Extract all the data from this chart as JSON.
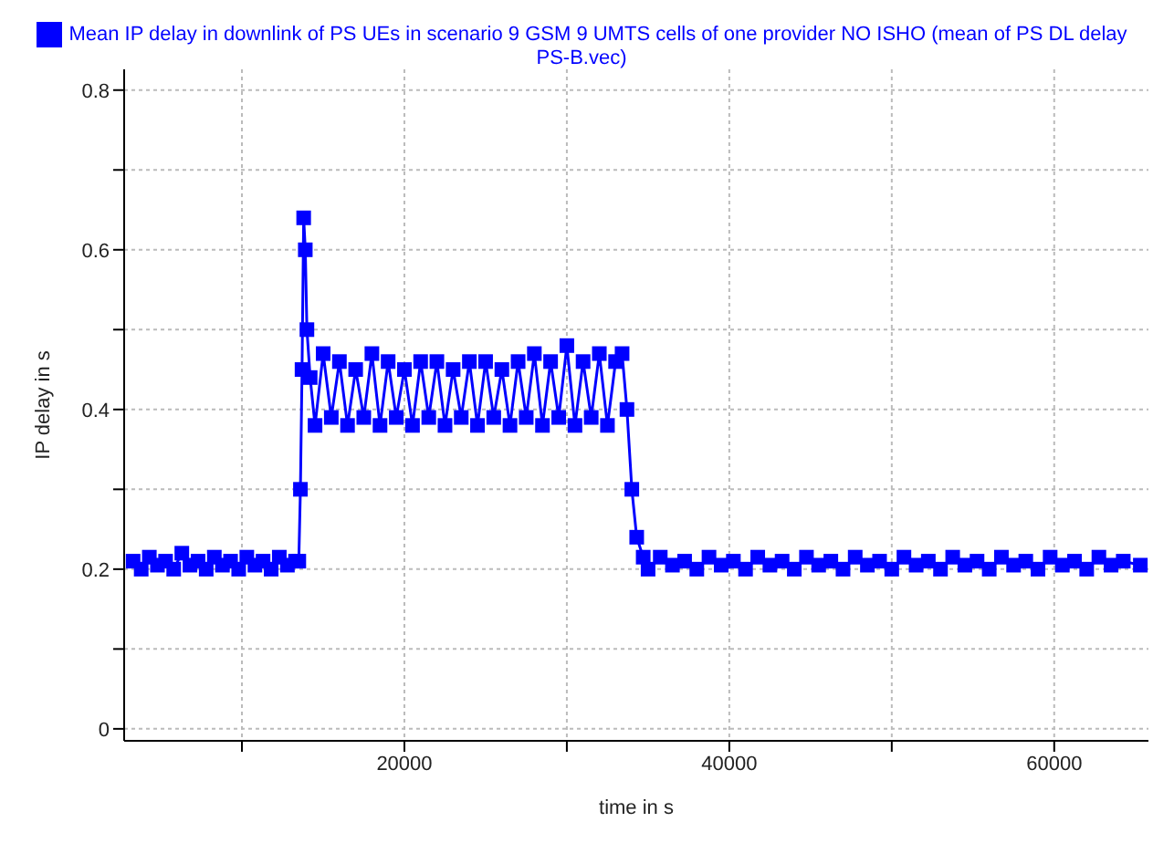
{
  "chart_data": {
    "type": "line",
    "xlabel": "time in s",
    "ylabel": "IP delay in s",
    "xlim": [
      2750,
      65800
    ],
    "ylim": [
      -0.015,
      0.826
    ],
    "xticks": [
      {
        "value": 10000,
        "label": null
      },
      20000,
      {
        "value": 30000,
        "label": null
      },
      40000,
      {
        "value": 50000,
        "label": null
      },
      60000
    ],
    "yticks": [
      0,
      {
        "value": 0.1,
        "label": null
      },
      0.2,
      {
        "value": 0.3,
        "label": null
      },
      0.4,
      {
        "value": 0.5,
        "label": null
      },
      0.6,
      {
        "value": 0.7,
        "label": null
      },
      0.8
    ],
    "grid": true,
    "legend": "top",
    "marker": "square",
    "line_style": "solid",
    "series": [
      {
        "name": "Mean IP delay in downlink of PS UEs in scenario 9 GSM 9 UMTS cells of one provider NO ISHO (mean of PS DL delay PS-B.vec)",
        "color": "#0000ff",
        "x": [
          3300,
          3800,
          4300,
          4800,
          5300,
          5800,
          6300,
          6800,
          7300,
          7800,
          8300,
          8800,
          9300,
          9800,
          10300,
          10800,
          11300,
          11800,
          12300,
          12800,
          13300,
          13500,
          13600,
          13700,
          13800,
          13900,
          14000,
          14200,
          14500,
          15000,
          15500,
          16000,
          16500,
          17000,
          17500,
          18000,
          18500,
          19000,
          19500,
          20000,
          20500,
          21000,
          21500,
          22000,
          22500,
          23000,
          23500,
          24000,
          24500,
          25000,
          25500,
          26000,
          26500,
          27000,
          27500,
          28000,
          28500,
          29000,
          29500,
          30000,
          30500,
          31000,
          31500,
          32000,
          32500,
          33000,
          33400,
          33700,
          34000,
          34300,
          34700,
          35000,
          35750,
          36500,
          37250,
          38000,
          38750,
          39500,
          40250,
          41000,
          41750,
          42500,
          43250,
          44000,
          44750,
          45500,
          46250,
          47000,
          47750,
          48500,
          49250,
          50000,
          50750,
          51500,
          52250,
          53000,
          53750,
          54500,
          55250,
          56000,
          56750,
          57500,
          58250,
          59000,
          59750,
          60500,
          61250,
          62000,
          62750,
          63500,
          64250,
          65300
        ],
        "values": [
          0.21,
          0.2,
          0.215,
          0.205,
          0.21,
          0.2,
          0.22,
          0.205,
          0.21,
          0.2,
          0.215,
          0.205,
          0.21,
          0.2,
          0.215,
          0.205,
          0.21,
          0.2,
          0.215,
          0.205,
          0.21,
          0.21,
          0.3,
          0.45,
          0.64,
          0.6,
          0.5,
          0.44,
          0.38,
          0.47,
          0.39,
          0.46,
          0.38,
          0.45,
          0.39,
          0.47,
          0.38,
          0.46,
          0.39,
          0.45,
          0.38,
          0.46,
          0.39,
          0.46,
          0.38,
          0.45,
          0.39,
          0.46,
          0.38,
          0.46,
          0.39,
          0.45,
          0.38,
          0.46,
          0.39,
          0.47,
          0.38,
          0.46,
          0.39,
          0.48,
          0.38,
          0.46,
          0.39,
          0.47,
          0.38,
          0.46,
          0.47,
          0.4,
          0.3,
          0.24,
          0.215,
          0.2,
          0.215,
          0.205,
          0.21,
          0.2,
          0.215,
          0.205,
          0.21,
          0.2,
          0.215,
          0.205,
          0.21,
          0.2,
          0.215,
          0.205,
          0.21,
          0.2,
          0.215,
          0.205,
          0.21,
          0.2,
          0.215,
          0.205,
          0.21,
          0.2,
          0.215,
          0.205,
          0.21,
          0.2,
          0.215,
          0.205,
          0.21,
          0.2,
          0.215,
          0.205,
          0.21,
          0.2,
          0.215,
          0.205,
          0.21,
          0.205
        ]
      }
    ]
  }
}
